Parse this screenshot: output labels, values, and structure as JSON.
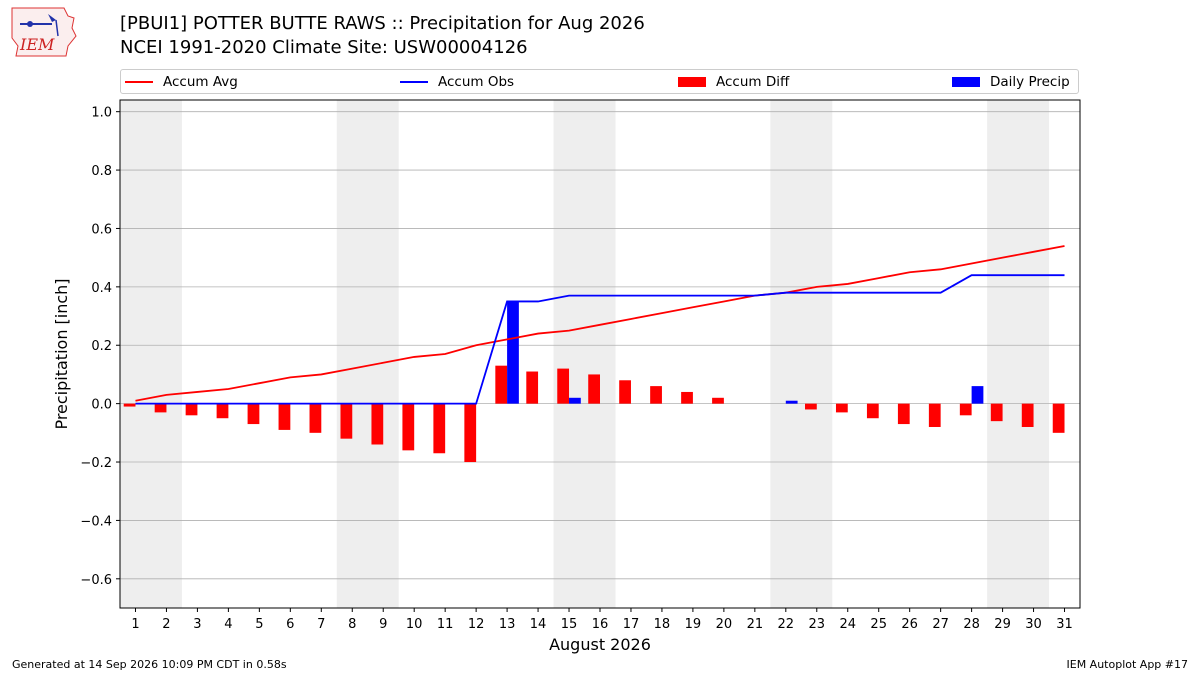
{
  "header": {
    "title_line1": "[PBUI1] POTTER BUTTE RAWS :: Precipitation for Aug 2026",
    "title_line2": "NCEI 1991-2020 Climate Site: USW00004126",
    "logo_text": "IEM"
  },
  "footer": {
    "left": "Generated at 14 Sep 2026 10:09 PM CDT in 0.58s",
    "right": "IEM Autoplot App #17"
  },
  "colors": {
    "avg": "#ff0000",
    "obs": "#0000ff",
    "diff": "#ff0000",
    "daily": "#0000ff",
    "weekend": "#eeeeee",
    "grid": "#b0b0b0"
  },
  "chart_data": {
    "type": "bar",
    "xlabel": "August 2026",
    "ylabel": "Precipitation [inch]",
    "xlim": [
      0.5,
      31.5
    ],
    "ylim": [
      -0.7,
      1.04
    ],
    "yticks": [
      -0.6,
      -0.4,
      -0.2,
      0.0,
      0.2,
      0.4,
      0.6,
      0.8,
      1.0
    ],
    "ytick_labels": [
      "−0.6",
      "−0.4",
      "−0.2",
      "0.0",
      "0.2",
      "0.4",
      "0.6",
      "0.8",
      "1.0"
    ],
    "x": [
      1,
      2,
      3,
      4,
      5,
      6,
      7,
      8,
      9,
      10,
      11,
      12,
      13,
      14,
      15,
      16,
      17,
      18,
      19,
      20,
      21,
      22,
      23,
      24,
      25,
      26,
      27,
      28,
      29,
      30,
      31
    ],
    "weekend_shading": [
      [
        0.5,
        2.5
      ],
      [
        7.5,
        9.5
      ],
      [
        14.5,
        16.5
      ],
      [
        21.5,
        23.5
      ],
      [
        28.5,
        30.5
      ]
    ],
    "grid": true,
    "legend_position": "top",
    "series": [
      {
        "name": "Accum Avg",
        "kind": "line",
        "values": [
          0.01,
          0.03,
          0.04,
          0.05,
          0.07,
          0.09,
          0.1,
          0.12,
          0.14,
          0.16,
          0.17,
          0.2,
          0.22,
          0.24,
          0.25,
          0.27,
          0.29,
          0.31,
          0.33,
          0.35,
          0.37,
          0.38,
          0.4,
          0.41,
          0.43,
          0.45,
          0.46,
          0.48,
          0.5,
          0.52,
          0.54
        ]
      },
      {
        "name": "Accum Obs",
        "kind": "line",
        "values": [
          0.0,
          0.0,
          0.0,
          0.0,
          0.0,
          0.0,
          0.0,
          0.0,
          0.0,
          0.0,
          0.0,
          0.0,
          0.35,
          0.35,
          0.37,
          0.37,
          0.37,
          0.37,
          0.37,
          0.37,
          0.37,
          0.38,
          0.38,
          0.38,
          0.38,
          0.38,
          0.38,
          0.44,
          0.44,
          0.44,
          0.44
        ]
      },
      {
        "name": "Accum Diff",
        "kind": "bar",
        "values": [
          -0.01,
          -0.03,
          -0.04,
          -0.05,
          -0.07,
          -0.09,
          -0.1,
          -0.12,
          -0.14,
          -0.16,
          -0.17,
          -0.2,
          0.13,
          0.11,
          0.12,
          0.1,
          0.08,
          0.06,
          0.04,
          0.02,
          0.0,
          0.0,
          -0.02,
          -0.03,
          -0.05,
          -0.07,
          -0.08,
          -0.04,
          -0.06,
          -0.08,
          -0.1
        ]
      },
      {
        "name": "Daily Precip",
        "kind": "bar",
        "values": [
          0,
          0,
          0,
          0,
          0,
          0,
          0,
          0,
          0,
          0,
          0,
          0,
          0.35,
          0,
          0.02,
          0,
          0,
          0,
          0,
          0,
          0,
          0.01,
          0,
          0,
          0,
          0,
          0,
          0.06,
          0,
          0,
          0
        ]
      }
    ]
  }
}
